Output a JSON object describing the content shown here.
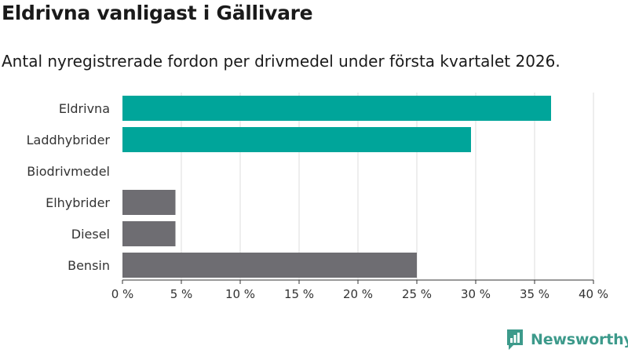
{
  "header": {
    "title": "Eldrivna vanligast i Gällivare",
    "subtitle": "Antal nyregistrerade fordon per drivmedel under första kvartalet 2026."
  },
  "chart_data": {
    "type": "bar",
    "orientation": "horizontal",
    "categories": [
      "Eldrivna",
      "Laddhybrider",
      "Biodrivmedel",
      "Elhybrider",
      "Diesel",
      "Bensin"
    ],
    "values": [
      36.4,
      29.6,
      0,
      4.5,
      4.5,
      25.0
    ],
    "colors": [
      "#00a59a",
      "#00a59a",
      "#00a59a",
      "#6e6d72",
      "#6e6d72",
      "#6e6d72"
    ],
    "xlim": [
      0,
      40
    ],
    "xticks": [
      0,
      5,
      10,
      15,
      20,
      25,
      30,
      35,
      40
    ],
    "xtick_labels": [
      "0 %",
      "5 %",
      "10 %",
      "15 %",
      "20 %",
      "25 %",
      "30 %",
      "35 %",
      "40 %"
    ],
    "grid": true,
    "xlabel": "",
    "ylabel": ""
  },
  "brand": {
    "name": "Newsworthy",
    "icon": "newsworthy-logo-icon",
    "color": "#3d9a8b"
  }
}
